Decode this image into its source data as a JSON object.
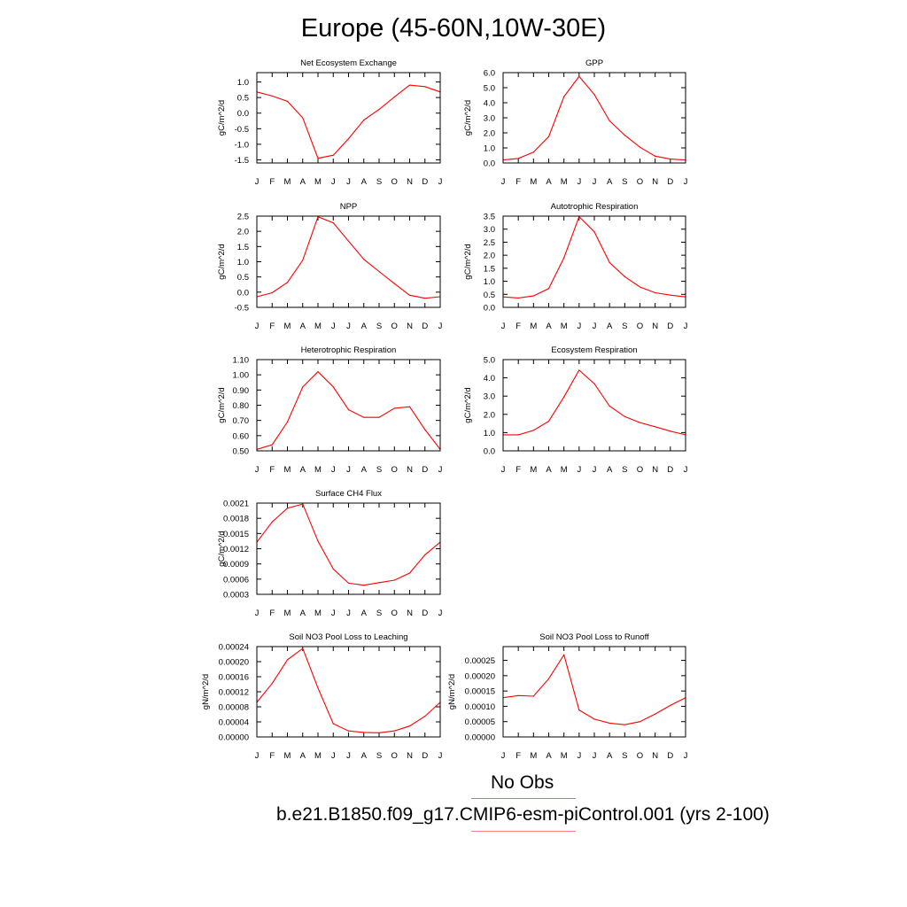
{
  "title": "Europe (45-60N,10W-30E)",
  "legend": {
    "obs_label": "No Obs",
    "obs_color": "#7f7fff",
    "model_label": "b.e21.B1850.f09_g17.CMIP6-esm-piControl.001 (yrs 2-100)",
    "model_color": "#ff7f7f"
  },
  "chart_data": [
    {
      "type": "line",
      "title": "Net Ecosystem Exchange",
      "ylabel": "gC/m^2/d",
      "x": [
        "J",
        "F",
        "M",
        "A",
        "M",
        "J",
        "J",
        "A",
        "S",
        "O",
        "N",
        "D",
        "J"
      ],
      "ylim": [
        -1.6,
        1.3
      ],
      "yticks": [
        "1.0",
        "0.5",
        "0.0",
        "-0.5",
        "-1.0",
        "-1.5"
      ],
      "ytick_values": [
        1.0,
        0.5,
        0.0,
        -0.5,
        -1.0,
        -1.5
      ],
      "series": [
        {
          "color": "#ff0000",
          "values": [
            0.68,
            0.55,
            0.38,
            -0.15,
            -1.45,
            -1.35,
            -0.82,
            -0.22,
            0.12,
            0.52,
            0.9,
            0.85,
            0.68
          ]
        }
      ]
    },
    {
      "type": "line",
      "title": "GPP",
      "ylabel": "gC/m^2/d",
      "x": [
        "J",
        "F",
        "M",
        "A",
        "M",
        "J",
        "J",
        "A",
        "S",
        "O",
        "N",
        "D",
        "J"
      ],
      "ylim": [
        0.0,
        6.0
      ],
      "yticks": [
        "6.0",
        "5.0",
        "4.0",
        "3.0",
        "2.0",
        "1.0",
        "0.0"
      ],
      "ytick_values": [
        6.0,
        5.0,
        4.0,
        3.0,
        2.0,
        1.0,
        0.0
      ],
      "series": [
        {
          "color": "#ff0000",
          "values": [
            0.2,
            0.3,
            0.72,
            1.75,
            4.4,
            5.75,
            4.55,
            2.8,
            1.85,
            1.05,
            0.45,
            0.26,
            0.2
          ]
        }
      ]
    },
    {
      "type": "line",
      "title": "NPP",
      "ylabel": "gC/m^2/d",
      "x": [
        "J",
        "F",
        "M",
        "A",
        "M",
        "J",
        "J",
        "A",
        "S",
        "O",
        "N",
        "D",
        "J"
      ],
      "ylim": [
        -0.5,
        2.5
      ],
      "yticks": [
        "2.5",
        "2.0",
        "1.5",
        "1.0",
        "0.5",
        "0.0",
        "-0.5"
      ],
      "ytick_values": [
        2.5,
        2.0,
        1.5,
        1.0,
        0.5,
        0.0,
        -0.5
      ],
      "series": [
        {
          "color": "#ff0000",
          "values": [
            -0.15,
            -0.02,
            0.32,
            1.05,
            2.48,
            2.28,
            1.68,
            1.08,
            0.68,
            0.28,
            -0.1,
            -0.2,
            -0.15
          ]
        }
      ]
    },
    {
      "type": "line",
      "title": "Autotrophic Respiration",
      "ylabel": "gC/m^2/d",
      "x": [
        "J",
        "F",
        "M",
        "A",
        "M",
        "J",
        "J",
        "A",
        "S",
        "O",
        "N",
        "D",
        "J"
      ],
      "ylim": [
        0.0,
        3.5
      ],
      "yticks": [
        "3.5",
        "3.0",
        "2.5",
        "2.0",
        "1.5",
        "1.0",
        "0.5",
        "0.0"
      ],
      "ytick_values": [
        3.5,
        3.0,
        2.5,
        2.0,
        1.5,
        1.0,
        0.5,
        0.0
      ],
      "series": [
        {
          "color": "#ff0000",
          "values": [
            0.4,
            0.36,
            0.44,
            0.72,
            1.9,
            3.48,
            2.9,
            1.72,
            1.18,
            0.78,
            0.56,
            0.47,
            0.4
          ]
        }
      ]
    },
    {
      "type": "line",
      "title": "Heterotrophic Respiration",
      "ylabel": "gC/m^2/d",
      "x": [
        "J",
        "F",
        "M",
        "A",
        "M",
        "J",
        "J",
        "A",
        "S",
        "O",
        "N",
        "D",
        "J"
      ],
      "ylim": [
        0.5,
        1.1
      ],
      "yticks": [
        "1.10",
        "1.00",
        "0.90",
        "0.80",
        "0.70",
        "0.60",
        "0.50"
      ],
      "ytick_values": [
        1.1,
        1.0,
        0.9,
        0.8,
        0.7,
        0.6,
        0.5
      ],
      "series": [
        {
          "color": "#ff0000",
          "values": [
            0.51,
            0.54,
            0.69,
            0.92,
            1.02,
            0.92,
            0.77,
            0.72,
            0.72,
            0.78,
            0.79,
            0.64,
            0.51
          ]
        }
      ]
    },
    {
      "type": "line",
      "title": "Ecosystem Respiration",
      "ylabel": "gC/m^2/d",
      "x": [
        "J",
        "F",
        "M",
        "A",
        "M",
        "J",
        "J",
        "A",
        "S",
        "O",
        "N",
        "D",
        "J"
      ],
      "ylim": [
        0.0,
        5.0
      ],
      "yticks": [
        "5.0",
        "4.0",
        "3.0",
        "2.0",
        "1.0",
        "0.0"
      ],
      "ytick_values": [
        5.0,
        4.0,
        3.0,
        2.0,
        1.0,
        0.0
      ],
      "series": [
        {
          "color": "#ff0000",
          "values": [
            0.88,
            0.88,
            1.12,
            1.62,
            2.95,
            4.42,
            3.68,
            2.45,
            1.88,
            1.55,
            1.32,
            1.08,
            0.88
          ]
        }
      ]
    },
    {
      "type": "line",
      "title": "Surface CH4 Flux",
      "ylabel": "gC/m^2/d",
      "x": [
        "J",
        "F",
        "M",
        "A",
        "M",
        "J",
        "J",
        "A",
        "S",
        "O",
        "N",
        "D",
        "J"
      ],
      "ylim": [
        0.0003,
        0.0021
      ],
      "yticks": [
        "0.0021",
        "0.0018",
        "0.0015",
        "0.0012",
        "0.0009",
        "0.0006",
        "0.0003"
      ],
      "ytick_values": [
        0.0021,
        0.0018,
        0.0015,
        0.0012,
        0.0009,
        0.0006,
        0.0003
      ],
      "series": [
        {
          "color": "#ff0000",
          "values": [
            0.00133,
            0.00173,
            0.002,
            0.00208,
            0.00135,
            0.0008,
            0.00052,
            0.00048,
            0.00053,
            0.00058,
            0.00072,
            0.00108,
            0.00133
          ]
        }
      ]
    },
    {
      "type": "line",
      "title": "Soil NO3 Pool Loss to Leaching",
      "ylabel": "gN/m^2/d",
      "x": [
        "J",
        "F",
        "M",
        "A",
        "M",
        "J",
        "J",
        "A",
        "S",
        "O",
        "N",
        "D",
        "J"
      ],
      "ylim": [
        0.0,
        0.00024
      ],
      "yticks": [
        "0.00024",
        "0.00020",
        "0.00016",
        "0.00012",
        "0.00008",
        "0.00004",
        "0.00000"
      ],
      "ytick_values": [
        0.00024,
        0.0002,
        0.00016,
        0.00012,
        8e-05,
        4e-05,
        0.0
      ],
      "series": [
        {
          "color": "#ff0000",
          "values": [
            9.2e-05,
            0.000142,
            0.000205,
            0.000235,
            0.00013,
            3.5e-05,
            1.6e-05,
            1.2e-05,
            1.1e-05,
            1.6e-05,
            2.9e-05,
            5.5e-05,
            9.2e-05
          ]
        }
      ]
    },
    {
      "type": "line",
      "title": "Soil NO3 Pool Loss to Runoff",
      "ylabel": "gN/m^2/d",
      "x": [
        "J",
        "F",
        "M",
        "A",
        "M",
        "J",
        "J",
        "A",
        "S",
        "O",
        "N",
        "D",
        "J"
      ],
      "ylim": [
        0.0,
        0.000295
      ],
      "yticks": [
        "0.00025",
        "0.00020",
        "0.00015",
        "0.00010",
        "0.00005",
        "0.00000"
      ],
      "ytick_values": [
        0.00025,
        0.0002,
        0.00015,
        0.0001,
        5e-05,
        0.0
      ],
      "series": [
        {
          "color": "#ff0000",
          "values": [
            0.000128,
            0.000135,
            0.000133,
            0.00019,
            0.000268,
            8.8e-05,
            5.8e-05,
            4.5e-05,
            4e-05,
            5e-05,
            7.5e-05,
            0.000103,
            0.000128
          ]
        }
      ]
    }
  ]
}
